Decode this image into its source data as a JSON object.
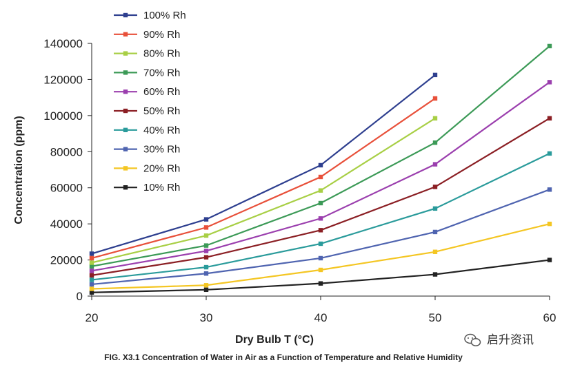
{
  "chart_data": {
    "type": "line",
    "title": "",
    "xlabel": "Dry Bulb T (°C)",
    "ylabel": "Concentration (ppm)",
    "x": [
      20,
      30,
      40,
      50,
      60
    ],
    "xlim": [
      20,
      60
    ],
    "ylim": [
      0,
      140000
    ],
    "x_ticks": [
      "20",
      "30",
      "40",
      "50",
      "60"
    ],
    "y_ticks": [
      "0",
      "20000",
      "40000",
      "60000",
      "80000",
      "100000",
      "120000",
      "140000"
    ],
    "grid": false,
    "legend_position": "top-left",
    "series": [
      {
        "name": "100% Rh",
        "color": "#2e3f8f",
        "values": [
          23500,
          42500,
          72500,
          122500,
          null
        ]
      },
      {
        "name": "90% Rh",
        "color": "#e8503a",
        "values": [
          21000,
          38000,
          66000,
          109500,
          null
        ]
      },
      {
        "name": "80% Rh",
        "color": "#a8cf45",
        "values": [
          18500,
          33500,
          58500,
          98500,
          null
        ]
      },
      {
        "name": "70% Rh",
        "color": "#3c9a57",
        "values": [
          16500,
          28000,
          51500,
          85000,
          138500
        ]
      },
      {
        "name": "60% Rh",
        "color": "#9b3fae",
        "values": [
          14000,
          25000,
          43000,
          73000,
          118500
        ]
      },
      {
        "name": "50% Rh",
        "color": "#8b1f24",
        "values": [
          11500,
          21500,
          36500,
          60500,
          98500
        ]
      },
      {
        "name": "40% Rh",
        "color": "#2a9b9b",
        "values": [
          9000,
          16000,
          29000,
          48500,
          79000
        ]
      },
      {
        "name": "30% Rh",
        "color": "#4f64b0",
        "values": [
          6500,
          12500,
          21000,
          35500,
          59000
        ]
      },
      {
        "name": "20% Rh",
        "color": "#f4c623",
        "values": [
          4000,
          6000,
          14500,
          24500,
          40000
        ]
      },
      {
        "name": "10% Rh",
        "color": "#222222",
        "values": [
          2000,
          3500,
          7000,
          12000,
          20000
        ]
      }
    ]
  },
  "caption": "FIG. X3.1 Concentration of Water in Air as a Function of Temperature and Relative Humidity",
  "watermark": {
    "text": "启升资讯",
    "icon": "wechat-icon"
  }
}
